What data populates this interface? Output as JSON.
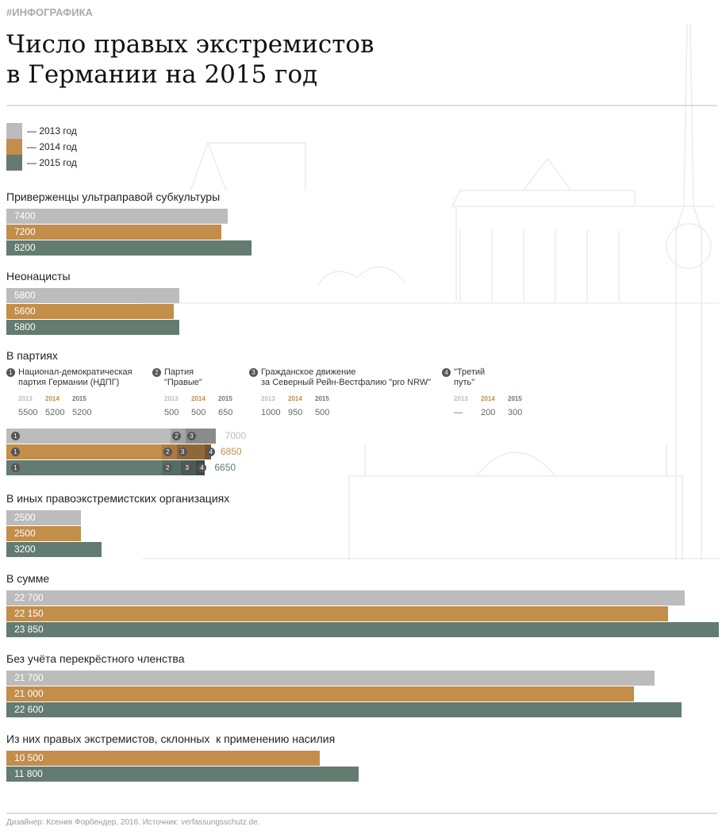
{
  "header": {
    "tag": "#ИНФОГРАФИКА",
    "title_lines": [
      "Число правых экстремистов",
      "в Германии на 2015 год"
    ]
  },
  "legend": [
    {
      "name": "— 2013 год",
      "color": "#bdbcbd"
    },
    {
      "name": "— 2014 год",
      "color": "#c38d4a"
    },
    {
      "name": "— 2015 год",
      "color": "#637b70"
    }
  ],
  "chart_data": [
    {
      "type": "bar",
      "title": "Приверженцы ультраправой субкультуры",
      "values": [
        7400,
        7200,
        8200
      ],
      "xlim": [
        0,
        23850
      ]
    },
    {
      "type": "bar",
      "title": "Неонацисты",
      "values": [
        5800,
        5600,
        5800
      ],
      "xlim": [
        0,
        23850
      ]
    },
    {
      "type": "stacked-bar",
      "title": "В партиях",
      "year_labels": [
        "2013",
        "2014",
        "2015"
      ],
      "xlim": [
        0,
        23850
      ],
      "series": [
        {
          "number": "1",
          "name": "Национал-демократическая\nпартия Германии (НДПГ)",
          "values": [
            5500,
            5200,
            5200
          ]
        },
        {
          "number": "2",
          "name": "Партия\n\"Правые\"",
          "values": [
            500,
            500,
            650
          ]
        },
        {
          "number": "3",
          "name": "Гражданское движение\nза Северный Рейн-Вестфалию \"pro NRW\"",
          "values": [
            1000,
            950,
            500
          ]
        },
        {
          "number": "4",
          "name": "\"Третий\nпуть\"",
          "values": [
            null,
            200,
            300
          ],
          "value_labels": [
            "—",
            "200",
            "300"
          ]
        }
      ],
      "totals": [
        7000,
        6850,
        6650
      ]
    },
    {
      "type": "bar",
      "title": "В иных правоэкстремистских организациях",
      "values": [
        2500,
        2500,
        3200
      ],
      "xlim": [
        0,
        23850
      ]
    },
    {
      "type": "bar",
      "title": "В сумме",
      "values": [
        22700,
        22150,
        23850
      ],
      "value_labels": [
        "22 700",
        "22 150",
        "23 850"
      ],
      "xlim": [
        0,
        23850
      ]
    },
    {
      "type": "bar",
      "title": "Без учёта перекрёстного членства",
      "values": [
        21700,
        21000,
        22600
      ],
      "value_labels": [
        "21 700",
        "21 000",
        "22 600"
      ],
      "xlim": [
        0,
        23850
      ]
    },
    {
      "type": "bar",
      "title": "Из них правых экстремистов, склонных  к применению насилия",
      "values": [
        null,
        10500,
        11800
      ],
      "value_labels": [
        null,
        "10 500",
        "11 800"
      ],
      "xlim": [
        0,
        23850
      ]
    }
  ],
  "footer": "Дизайнер: Ксения Форбендер, 2016. Источник: verfassungsschutz.de."
}
